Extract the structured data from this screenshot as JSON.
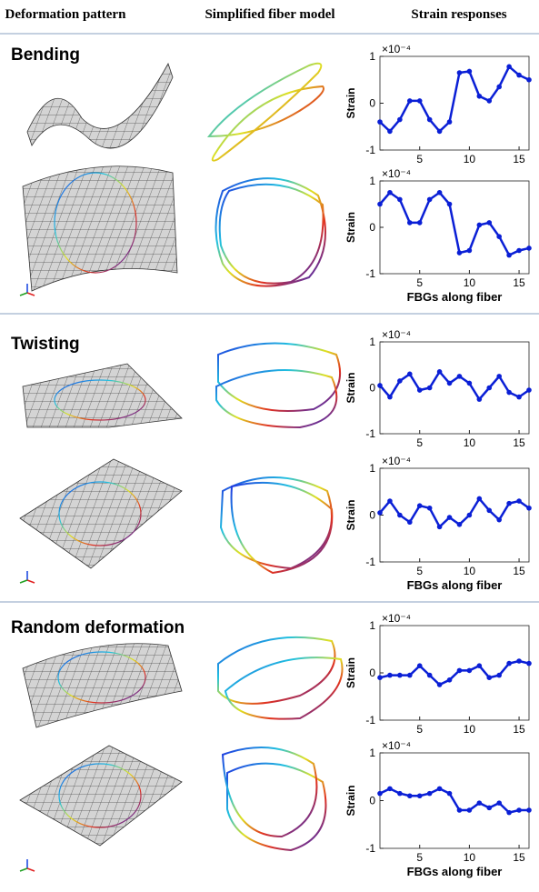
{
  "header": [
    "Deformation pattern",
    "Simplified fiber model",
    "Strain responses"
  ],
  "sections": [
    {
      "title": "Bending"
    },
    {
      "title": "Twisting"
    },
    {
      "title": "Random deformation"
    }
  ],
  "chart_data": [
    {
      "type": "line",
      "ylabel": "Strain",
      "scale_label": "×10⁻⁴",
      "color": "#0a1fd6",
      "x": [
        1,
        2,
        3,
        4,
        5,
        6,
        7,
        8,
        9,
        10,
        11,
        12,
        13,
        14,
        15,
        16
      ],
      "values": [
        -0.4,
        -0.6,
        -0.35,
        0.05,
        0.05,
        -0.35,
        -0.6,
        -0.4,
        0.65,
        0.68,
        0.15,
        0.05,
        0.35,
        0.78,
        0.6,
        0.5
      ],
      "xlim": [
        1,
        16
      ],
      "ylim": [
        -1,
        1
      ],
      "xticks": [
        5,
        10,
        15
      ],
      "yticks": [
        -1,
        0,
        1
      ]
    },
    {
      "type": "line",
      "ylabel": "Strain",
      "xlabel": "FBGs along fiber",
      "scale_label": "×10⁻⁴",
      "color": "#0a1fd6",
      "x": [
        1,
        2,
        3,
        4,
        5,
        6,
        7,
        8,
        9,
        10,
        11,
        12,
        13,
        14,
        15,
        16
      ],
      "values": [
        0.5,
        0.75,
        0.6,
        0.1,
        0.1,
        0.6,
        0.75,
        0.5,
        -0.55,
        -0.5,
        0.05,
        0.1,
        -0.2,
        -0.6,
        -0.5,
        -0.45
      ],
      "xlim": [
        1,
        16
      ],
      "ylim": [
        -1,
        1
      ],
      "xticks": [
        5,
        10,
        15
      ],
      "yticks": [
        -1,
        0,
        1
      ]
    },
    {
      "type": "line",
      "ylabel": "Strain",
      "scale_label": "×10⁻⁴",
      "color": "#0a1fd6",
      "x": [
        1,
        2,
        3,
        4,
        5,
        6,
        7,
        8,
        9,
        10,
        11,
        12,
        13,
        14,
        15,
        16
      ],
      "values": [
        0.05,
        -0.2,
        0.15,
        0.3,
        -0.05,
        0.0,
        0.35,
        0.1,
        0.25,
        0.1,
        -0.25,
        0.0,
        0.25,
        -0.1,
        -0.2,
        -0.05
      ],
      "xlim": [
        1,
        16
      ],
      "ylim": [
        -1,
        1
      ],
      "xticks": [
        5,
        10,
        15
      ],
      "yticks": [
        -1,
        0,
        1
      ]
    },
    {
      "type": "line",
      "ylabel": "Strain",
      "xlabel": "FBGs along fiber",
      "scale_label": "×10⁻⁴",
      "color": "#0a1fd6",
      "x": [
        1,
        2,
        3,
        4,
        5,
        6,
        7,
        8,
        9,
        10,
        11,
        12,
        13,
        14,
        15,
        16
      ],
      "values": [
        0.05,
        0.3,
        0.0,
        -0.15,
        0.2,
        0.15,
        -0.25,
        -0.05,
        -0.2,
        0.0,
        0.35,
        0.1,
        -0.1,
        0.25,
        0.3,
        0.15
      ],
      "xlim": [
        1,
        16
      ],
      "ylim": [
        -1,
        1
      ],
      "xticks": [
        5,
        10,
        15
      ],
      "yticks": [
        -1,
        0,
        1
      ]
    },
    {
      "type": "line",
      "ylabel": "Strain",
      "scale_label": "×10⁻⁴",
      "color": "#0a1fd6",
      "x": [
        1,
        2,
        3,
        4,
        5,
        6,
        7,
        8,
        9,
        10,
        11,
        12,
        13,
        14,
        15,
        16
      ],
      "values": [
        -0.1,
        -0.05,
        -0.05,
        -0.05,
        0.15,
        -0.05,
        -0.25,
        -0.15,
        0.05,
        0.05,
        0.15,
        -0.1,
        -0.05,
        0.2,
        0.25,
        0.2
      ],
      "xlim": [
        1,
        16
      ],
      "ylim": [
        -1,
        1
      ],
      "xticks": [
        5,
        10,
        15
      ],
      "yticks": [
        -1,
        0,
        1
      ]
    },
    {
      "type": "line",
      "ylabel": "Strain",
      "xlabel": "FBGs along fiber",
      "scale_label": "×10⁻⁴",
      "color": "#0a1fd6",
      "x": [
        1,
        2,
        3,
        4,
        5,
        6,
        7,
        8,
        9,
        10,
        11,
        12,
        13,
        14,
        15,
        16
      ],
      "values": [
        0.15,
        0.25,
        0.15,
        0.1,
        0.1,
        0.15,
        0.25,
        0.15,
        -0.2,
        -0.2,
        -0.05,
        -0.15,
        -0.05,
        -0.25,
        -0.2,
        -0.2
      ],
      "xlim": [
        1,
        16
      ],
      "ylim": [
        -1,
        1
      ],
      "xticks": [
        5,
        10,
        15
      ],
      "yticks": [
        -1,
        0,
        1
      ]
    }
  ]
}
